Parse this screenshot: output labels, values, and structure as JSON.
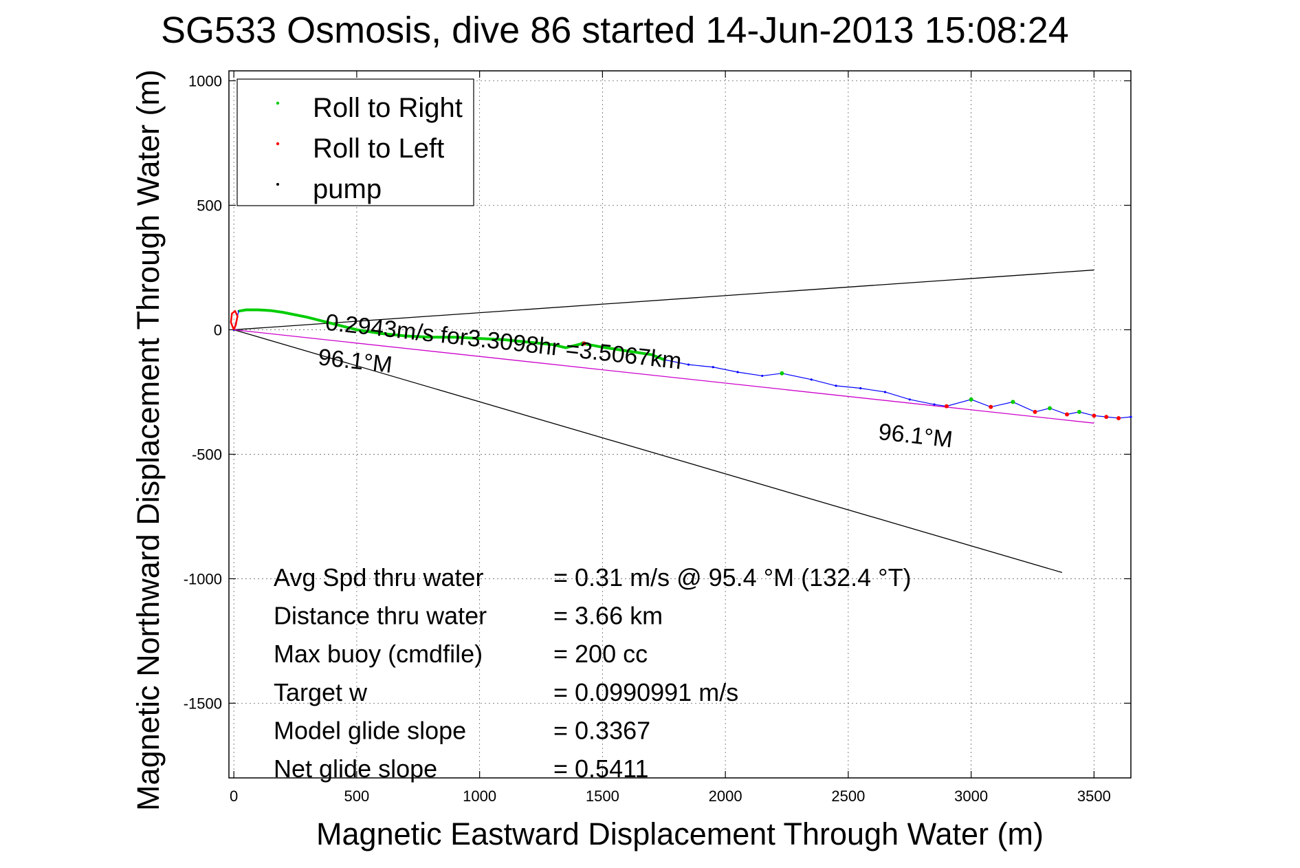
{
  "chart_data": {
    "type": "line",
    "title": "SG533 Osmosis, dive 86 started 14-Jun-2013 15:08:24",
    "xlabel": "Magnetic Eastward Displacement Through Water (m)",
    "ylabel": "Magnetic Northward Displacement Through Water (m)",
    "xlim": [
      -20,
      3650
    ],
    "ylim": [
      -1800,
      1040
    ],
    "xticks": [
      0,
      500,
      1000,
      1500,
      2000,
      2500,
      3000,
      3500
    ],
    "yticks": [
      1000,
      500,
      0,
      -500,
      -1000,
      -1500
    ],
    "grid": true,
    "legend_position": "top-left",
    "legend": [
      {
        "label": "Roll to Right",
        "color": "#00cc00"
      },
      {
        "label": "Roll to Left",
        "color": "#ff0000"
      },
      {
        "label": "pump",
        "color": "#000000"
      }
    ],
    "series": [
      {
        "name": "track",
        "color": "#0000ff",
        "x": [
          0,
          20,
          50,
          100,
          150,
          200,
          300,
          400,
          500,
          600,
          700,
          800,
          900,
          1000,
          1100,
          1200,
          1300,
          1350,
          1420,
          1500,
          1600,
          1700,
          1750,
          1850,
          1950,
          2050,
          2150,
          2230,
          2350,
          2450,
          2550,
          2650,
          2750,
          2850,
          2900,
          3000,
          3080,
          3170,
          3260,
          3320,
          3390,
          3440,
          3500,
          3550,
          3600,
          3650
        ],
        "y": [
          0,
          75,
          80,
          80,
          77,
          70,
          50,
          25,
          0,
          -15,
          -25,
          -30,
          -30,
          -35,
          -40,
          -50,
          -60,
          -72,
          -55,
          -70,
          -85,
          -100,
          -120,
          -140,
          -150,
          -170,
          -185,
          -175,
          -200,
          -225,
          -235,
          -250,
          -280,
          -300,
          -307,
          -280,
          -310,
          -290,
          -330,
          -315,
          -340,
          -330,
          -345,
          -350,
          -355,
          -350
        ]
      }
    ],
    "reference_lines": [
      {
        "from": [
          0,
          0
        ],
        "to": [
          3500,
          240
        ],
        "color": "#000000"
      },
      {
        "from": [
          0,
          0
        ],
        "to": [
          3370,
          -975
        ],
        "color": "#000000"
      },
      {
        "from": [
          0,
          0
        ],
        "to": [
          3500,
          -375
        ],
        "color": "#cc00cc"
      }
    ],
    "annotations": [
      {
        "text": "0.2943m/s for3.3098hr =3.5067km",
        "at": [
          370,
          0
        ],
        "rotate": 6.3
      },
      {
        "text": "96.1°M",
        "at": [
          340,
          -140
        ],
        "rotate": 6.3
      },
      {
        "text": "96.1°M",
        "at": [
          2620,
          -440
        ],
        "rotate": 6.3
      }
    ],
    "stats": [
      {
        "label": "Avg Spd thru water",
        "value": "=  0.31 m/s @  95.4 °M (132.4 °T)"
      },
      {
        "label": "Distance thru water",
        "value": "=  3.66 km"
      },
      {
        "label": "Max buoy (cmdfile)",
        "value": "= 200 cc"
      },
      {
        "label": "Target w",
        "value": "= 0.0990991 m/s"
      },
      {
        "label": "Model glide slope",
        "value": "= 0.3367"
      },
      {
        "label": "Net glide slope",
        "value": "= 0.5411"
      }
    ]
  }
}
